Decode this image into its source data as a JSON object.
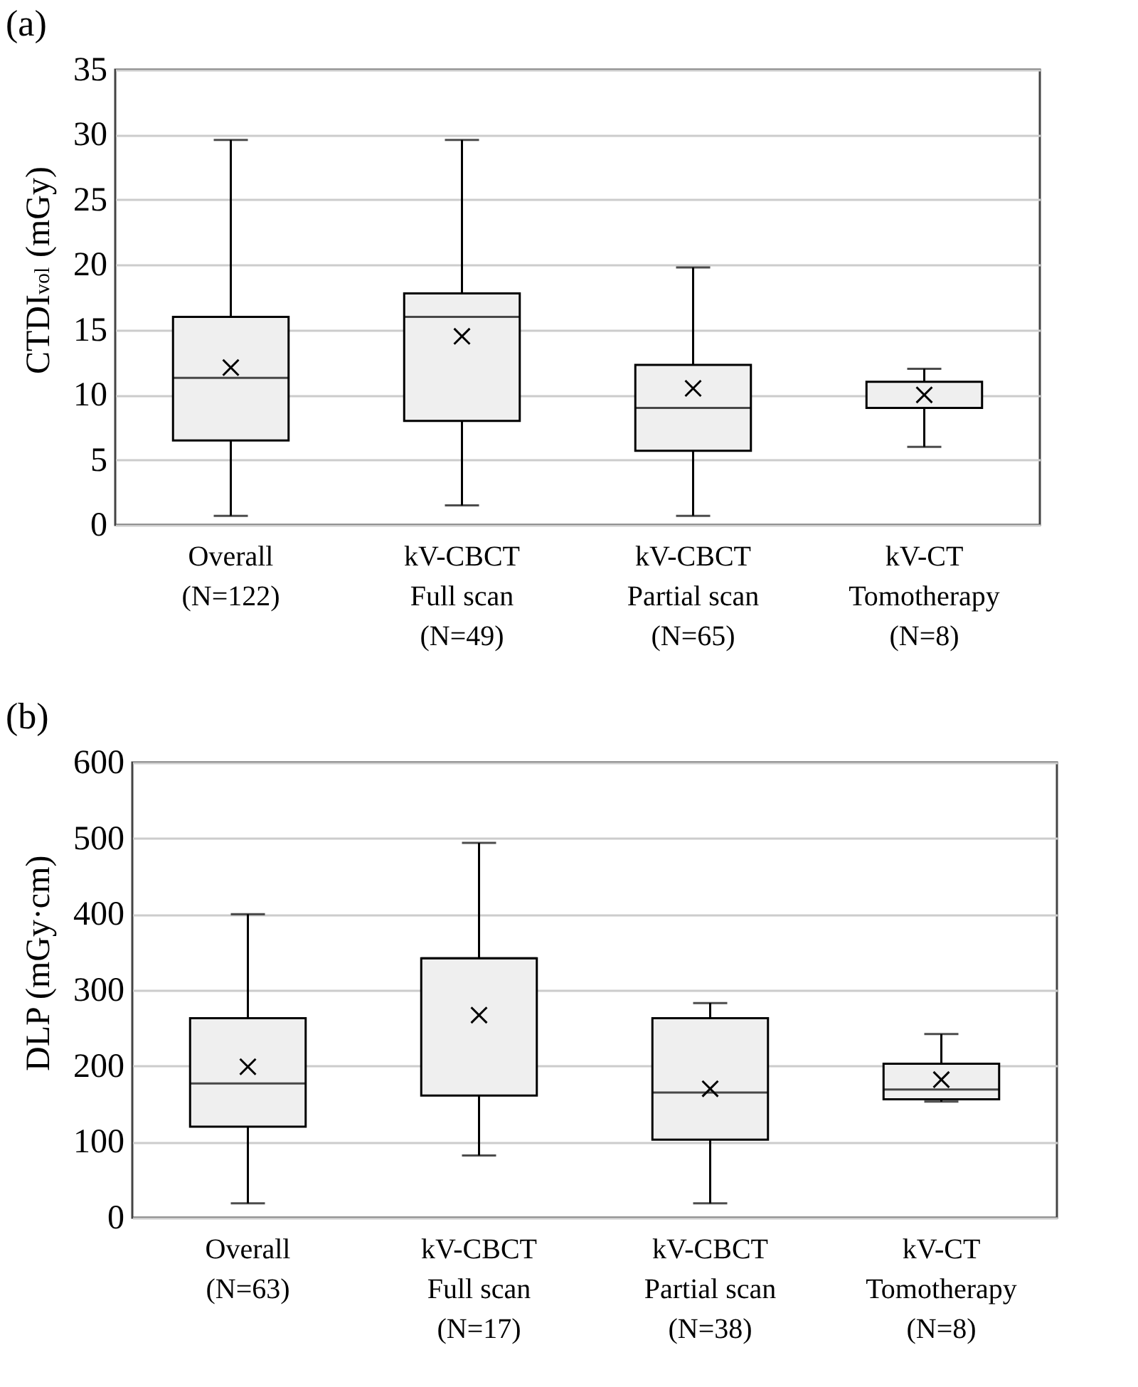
{
  "chart_data": [
    {
      "type": "box",
      "title": "(a)",
      "ylabel": "CTDI$_{vol}$ (mGy)",
      "categories": [
        "Overall\n(N=122)",
        "kV-CBCT\nFull scan\n(N=49)",
        "kV-CBCT\nPartial scan\n(N=65)",
        "kV-CT\nTomotherapy\n(N=8)"
      ],
      "boxes": [
        {
          "low": 0.7,
          "q1": 6.5,
          "median": 11.3,
          "q3": 16.0,
          "high": 29.6,
          "mean": 12.1
        },
        {
          "low": 1.5,
          "q1": 8.0,
          "median": 16.0,
          "q3": 17.8,
          "high": 29.6,
          "mean": 14.5
        },
        {
          "low": 0.7,
          "q1": 5.7,
          "median": 9.0,
          "q3": 12.3,
          "high": 19.8,
          "mean": 10.5
        },
        {
          "low": 6.0,
          "q1": 9.0,
          "median": 9.0,
          "q3": 11.0,
          "high": 12.0,
          "mean": 10.0
        }
      ],
      "ylim": [
        0,
        35
      ],
      "yticks": [
        0,
        5,
        10,
        15,
        20,
        25,
        30,
        35
      ],
      "grid": "y"
    },
    {
      "type": "box",
      "title": "(b)",
      "ylabel": "DLP (mGy·cm)",
      "categories": [
        "Overall\n(N=63)",
        "kV-CBCT\nFull scan\n(N=17)",
        "kV-CBCT\nPartial scan\n(N=38)",
        "kV-CT\nTomotherapy\n(N=8)"
      ],
      "boxes": [
        {
          "low": 19,
          "q1": 120,
          "median": 177,
          "q3": 263,
          "high": 400,
          "mean": 199
        },
        {
          "low": 82,
          "q1": 161,
          "median": 342,
          "q3": 342,
          "high": 494,
          "mean": 267
        },
        {
          "low": 19,
          "q1": 103,
          "median": 165,
          "q3": 263,
          "high": 283,
          "mean": 170
        },
        {
          "low": 153,
          "q1": 156,
          "median": 169,
          "q3": 203,
          "high": 242,
          "mean": 182
        }
      ],
      "ylim": [
        0,
        600
      ],
      "yticks": [
        0,
        100,
        200,
        300,
        400,
        500,
        600
      ],
      "grid": "y"
    }
  ]
}
